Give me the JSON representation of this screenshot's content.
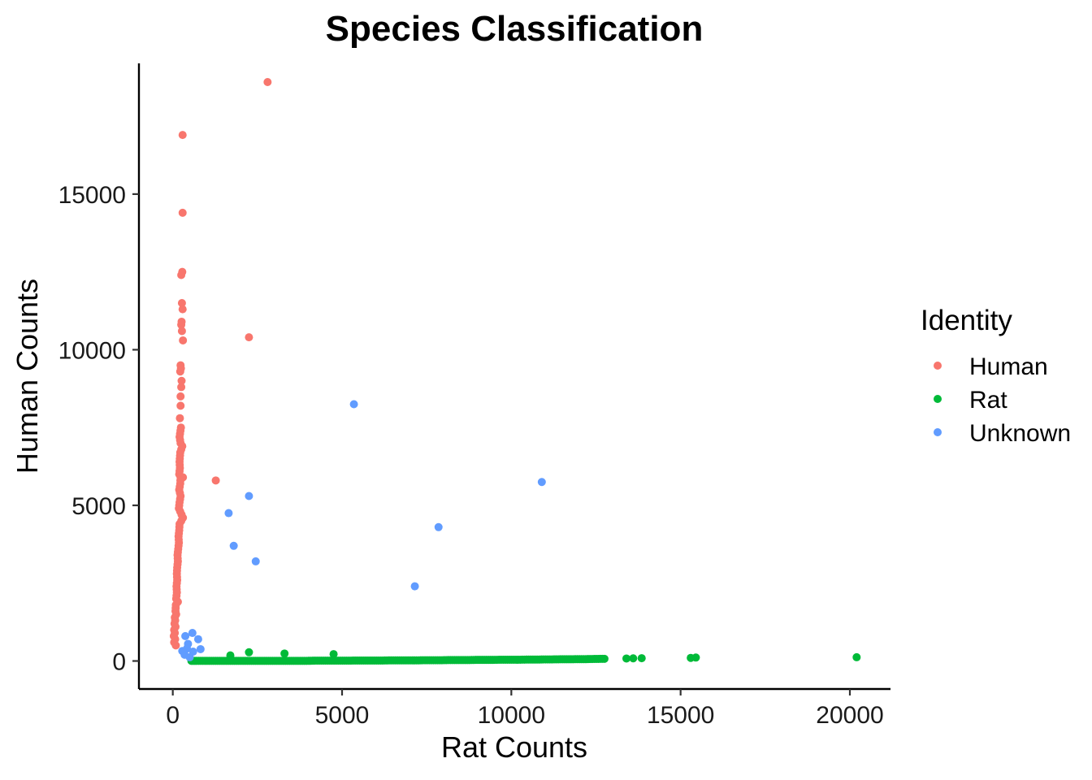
{
  "chart_data": {
    "type": "scatter",
    "title": "Species Classification",
    "xlabel": "Rat Counts",
    "ylabel": "Human Counts",
    "xlim": [
      -1000,
      21200
    ],
    "ylim": [
      -900,
      19200
    ],
    "xticks": [
      0,
      5000,
      10000,
      15000,
      20000
    ],
    "yticks": [
      0,
      5000,
      10000,
      15000
    ],
    "grid": false,
    "legend": {
      "title": "Identity",
      "position": "right"
    },
    "series": [
      {
        "name": "Human",
        "color": "#F8766D",
        "points": [
          [
            2800,
            18600
          ],
          [
            290,
            16900
          ],
          [
            290,
            14400
          ],
          [
            280,
            12500
          ],
          [
            250,
            12400
          ],
          [
            270,
            11500
          ],
          [
            290,
            11300
          ],
          [
            260,
            10900
          ],
          [
            250,
            10800
          ],
          [
            270,
            10600
          ],
          [
            300,
            10300
          ],
          [
            2250,
            10400
          ],
          [
            230,
            9500
          ],
          [
            240,
            9400
          ],
          [
            220,
            9300
          ],
          [
            260,
            9000
          ],
          [
            250,
            8800
          ],
          [
            230,
            8500
          ],
          [
            230,
            8200
          ],
          [
            210,
            7800
          ],
          [
            240,
            7500
          ],
          [
            200,
            7200
          ],
          [
            230,
            7000
          ],
          [
            280,
            6900
          ],
          [
            220,
            6700
          ],
          [
            200,
            6400
          ],
          [
            210,
            6200
          ],
          [
            190,
            6000
          ],
          [
            230,
            5900
          ],
          [
            300,
            5900
          ],
          [
            220,
            5700
          ],
          [
            190,
            5500
          ],
          [
            230,
            5300
          ],
          [
            200,
            5100
          ],
          [
            180,
            4900
          ],
          [
            300,
            4600
          ],
          [
            200,
            4400
          ],
          [
            190,
            4200
          ],
          [
            170,
            4000
          ],
          [
            180,
            3800
          ],
          [
            160,
            3600
          ],
          [
            140,
            3400
          ],
          [
            150,
            3200
          ],
          [
            130,
            3000
          ],
          [
            120,
            2800
          ],
          [
            130,
            2600
          ],
          [
            110,
            2400
          ],
          [
            120,
            2200
          ],
          [
            100,
            2000
          ],
          [
            150,
            1900
          ],
          [
            90,
            1800
          ],
          [
            80,
            1600
          ],
          [
            100,
            1500
          ],
          [
            60,
            1400
          ],
          [
            70,
            1300
          ],
          [
            50,
            1200
          ],
          [
            80,
            1100
          ],
          [
            40,
            1000
          ],
          [
            60,
            900
          ],
          [
            30,
            800
          ],
          [
            70,
            700
          ],
          [
            40,
            600
          ],
          [
            90,
            500
          ],
          [
            1270,
            5800
          ]
        ]
      },
      {
        "name": "Rat",
        "color": "#00BA38",
        "points": [
          [
            20200,
            120
          ],
          [
            15450,
            110
          ],
          [
            15300,
            100
          ],
          [
            13850,
            90
          ],
          [
            13600,
            85
          ],
          [
            13400,
            80
          ],
          [
            12750,
            70
          ],
          [
            12450,
            65
          ],
          [
            12200,
            60
          ],
          [
            11950,
            60
          ],
          [
            11700,
            55
          ],
          [
            11450,
            55
          ],
          [
            11200,
            50
          ],
          [
            10950,
            50
          ],
          [
            10700,
            45
          ],
          [
            10450,
            45
          ],
          [
            10200,
            40
          ],
          [
            9950,
            40
          ],
          [
            9700,
            40
          ],
          [
            9450,
            35
          ],
          [
            9200,
            35
          ],
          [
            8950,
            35
          ],
          [
            8700,
            30
          ],
          [
            8450,
            30
          ],
          [
            8200,
            30
          ],
          [
            7950,
            25
          ],
          [
            7700,
            25
          ],
          [
            7450,
            25
          ],
          [
            7200,
            20
          ],
          [
            6950,
            20
          ],
          [
            6700,
            20
          ],
          [
            6450,
            20
          ],
          [
            6200,
            15
          ],
          [
            5950,
            15
          ],
          [
            5700,
            15
          ],
          [
            5450,
            15
          ],
          [
            5200,
            10
          ],
          [
            4950,
            10
          ],
          [
            4750,
            220
          ],
          [
            4700,
            10
          ],
          [
            4450,
            10
          ],
          [
            4200,
            10
          ],
          [
            3950,
            5
          ],
          [
            3700,
            5
          ],
          [
            3450,
            5
          ],
          [
            3300,
            240
          ],
          [
            3200,
            5
          ],
          [
            2950,
            5
          ],
          [
            2700,
            5
          ],
          [
            2450,
            5
          ],
          [
            2250,
            280
          ],
          [
            2200,
            5
          ],
          [
            1950,
            5
          ],
          [
            1700,
            180
          ],
          [
            1700,
            5
          ],
          [
            1450,
            5
          ],
          [
            1200,
            5
          ],
          [
            950,
            5
          ],
          [
            700,
            5
          ],
          [
            550,
            5
          ]
        ]
      },
      {
        "name": "Unknown",
        "color": "#619CFF",
        "points": [
          [
            5350,
            8250
          ],
          [
            10900,
            5750
          ],
          [
            2250,
            5300
          ],
          [
            1650,
            4750
          ],
          [
            7850,
            4300
          ],
          [
            1800,
            3700
          ],
          [
            2450,
            3200
          ],
          [
            7150,
            2400
          ],
          [
            580,
            900
          ],
          [
            750,
            700
          ],
          [
            370,
            800
          ],
          [
            450,
            550
          ],
          [
            420,
            400
          ],
          [
            820,
            380
          ],
          [
            600,
            300
          ],
          [
            350,
            200
          ],
          [
            500,
            120
          ],
          [
            280,
            320
          ]
        ]
      }
    ]
  }
}
